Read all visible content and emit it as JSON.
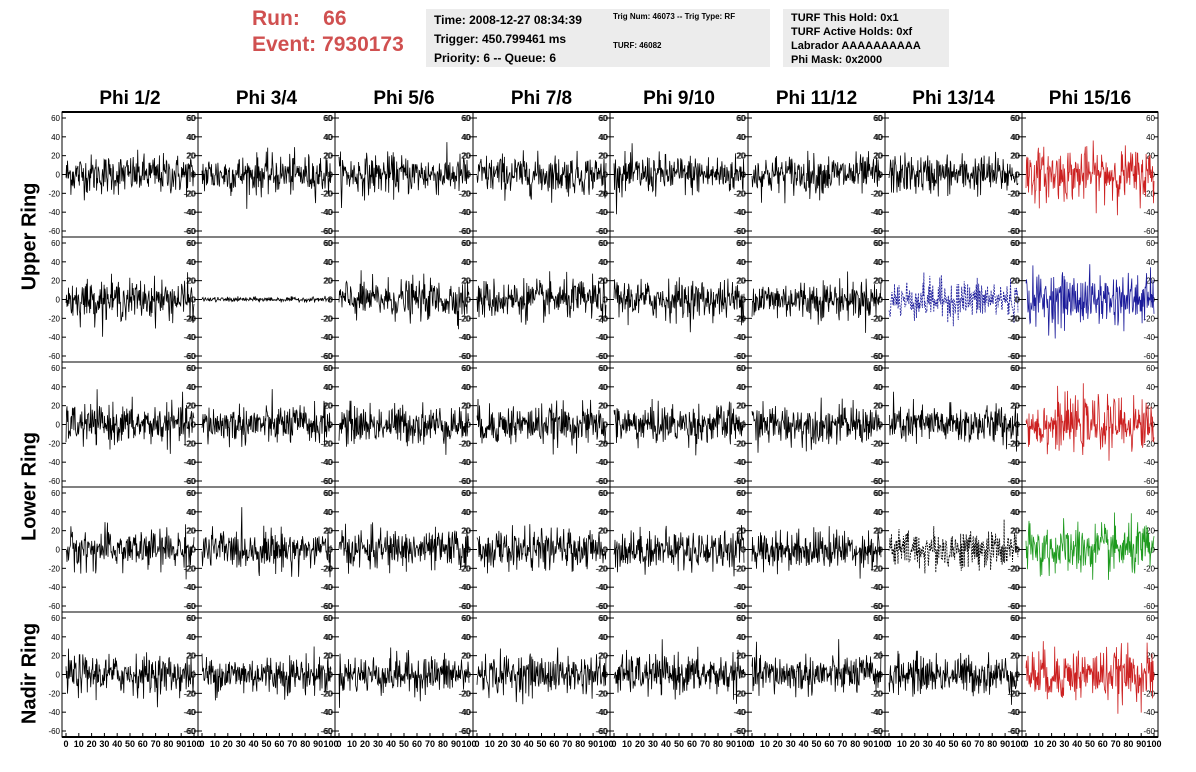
{
  "header": {
    "run_label": "Run:",
    "run_value": "66",
    "event_label": "Event:",
    "event_value": "7930173",
    "info1": [
      "Time: 2008-12-27 08:34:39",
      "Trigger: 450.799461 ms",
      "Priority: 6 -- Queue: 6"
    ],
    "info2": [
      "Trig Num: 46073 -- Trig Type: RF",
      "TURF: 46082"
    ],
    "info3": [
      "TURF This Hold: 0x1",
      "TURF Active Holds: 0xf",
      "Labrador AAAAAAAAAA",
      "Phi Mask: 0x2000"
    ]
  },
  "chart_data": {
    "type": "line",
    "title": "",
    "xlabel": "",
    "ylabel": "",
    "columns": [
      "Phi 1/2",
      "Phi 3/4",
      "Phi 5/6",
      "Phi 7/8",
      "Phi 9/10",
      "Phi 11/12",
      "Phi 13/14",
      "Phi 15/16"
    ],
    "rows": [
      "Upper Ring",
      "Lower Ring",
      "Nadir Ring"
    ],
    "xlim": [
      0,
      100
    ],
    "ylim": [
      -60,
      60
    ],
    "x_ticks": [
      "0",
      "10",
      "20",
      "30",
      "40",
      "50",
      "60",
      "70",
      "80",
      "90",
      "100"
    ],
    "y_ticks": [
      "-60",
      "-40",
      "-20",
      "0",
      "20",
      "40",
      "60"
    ],
    "colors": {
      "default": "#000000",
      "red": "#cc2020",
      "blue": "#1a1a9a",
      "green": "#1e9a1e"
    },
    "highlighted_traces": [
      {
        "row": 0,
        "col": 7,
        "color": "red"
      },
      {
        "row": 1,
        "col": 6,
        "color": "blue",
        "style": "dashed"
      },
      {
        "row": 1,
        "col": 7,
        "color": "blue"
      },
      {
        "row": 2,
        "col": 7,
        "color": "red"
      },
      {
        "row": 3,
        "col": 6,
        "color": "default",
        "style": "dashed"
      },
      {
        "row": 3,
        "col": 7,
        "color": "green"
      },
      {
        "row": 4,
        "col": 7,
        "color": "red"
      }
    ],
    "amplitude_notes": {
      "typical_peak": 25,
      "flat_trace": {
        "row": 1,
        "col": 1,
        "peak": 3
      }
    }
  }
}
